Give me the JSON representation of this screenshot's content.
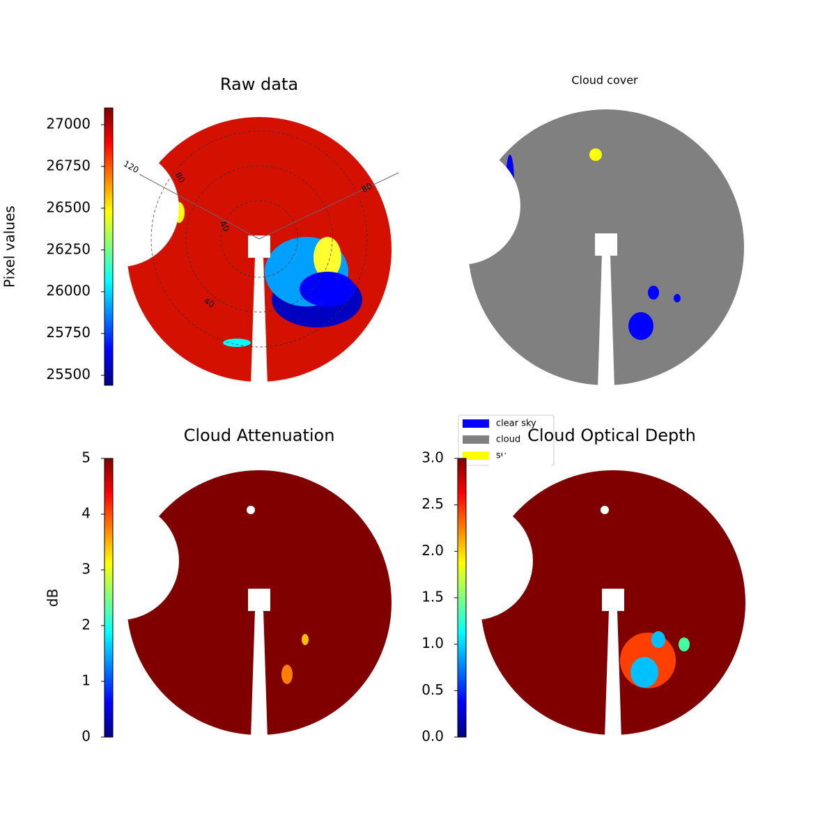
{
  "chart_data": [
    {
      "type": "image",
      "title": "Raw data",
      "colorbar": {
        "label": "Pixel values",
        "lim": [
          25440,
          27100
        ],
        "ticks": [
          25500,
          25750,
          26000,
          26250,
          26500,
          26750,
          27000
        ],
        "colormap": "jet"
      },
      "annotations": [
        "120",
        "80",
        "40",
        "40",
        "80"
      ]
    },
    {
      "type": "image",
      "title": "Cloud cover",
      "legend": [
        {
          "name": "clear sky",
          "color": "#0000ff"
        },
        {
          "name": "cloud",
          "color": "#808080"
        },
        {
          "name": "sun",
          "color": "#ffff00"
        }
      ]
    },
    {
      "type": "image",
      "title": "Cloud Attenuation",
      "colorbar": {
        "label": "dB",
        "lim": [
          0,
          5
        ],
        "ticks": [
          0,
          1,
          2,
          3,
          4,
          5
        ],
        "colormap": "jet"
      }
    },
    {
      "type": "image",
      "title": "Cloud Optical Depth",
      "colorbar": {
        "lim": [
          0,
          3
        ],
        "ticks": [
          {
            "value": 0,
            "label": "0.0"
          },
          {
            "value": 0.5,
            "label": "0.5"
          },
          {
            "value": 1,
            "label": "1.0"
          },
          {
            "value": 1.5,
            "label": "1.5"
          },
          {
            "value": 2,
            "label": "2.0"
          },
          {
            "value": 2.5,
            "label": "2.5"
          },
          {
            "value": 3,
            "label": "3.0"
          }
        ],
        "colormap": "jet"
      }
    }
  ]
}
